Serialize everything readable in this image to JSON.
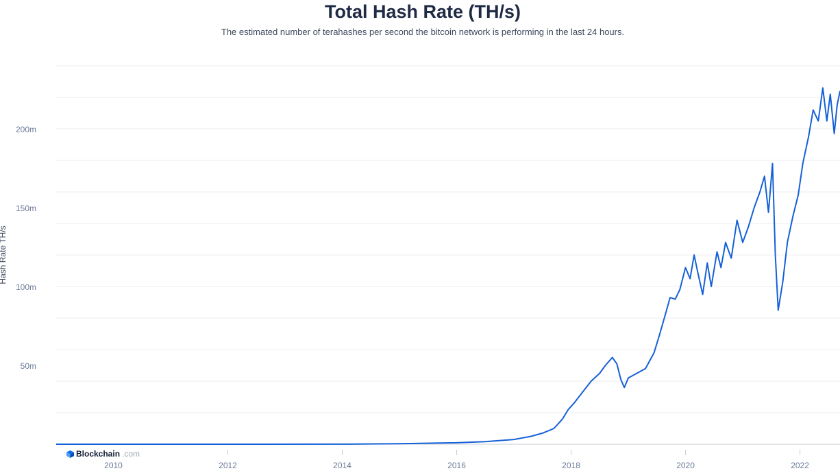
{
  "chart_data": {
    "type": "line",
    "title": "Total Hash Rate (TH/s)",
    "subtitle": "The estimated number of terahashes per second the bitcoin network is performing in the last 24 hours.",
    "ylabel": "Hash Rate TH/s",
    "xlabel": "",
    "xlim": [
      2009.0,
      2022.7
    ],
    "ylim": [
      0,
      240000000
    ],
    "x_ticks": [
      {
        "value": 2010,
        "label": "2010"
      },
      {
        "value": 2012,
        "label": "2012"
      },
      {
        "value": 2014,
        "label": "2014"
      },
      {
        "value": 2016,
        "label": "2016"
      },
      {
        "value": 2018,
        "label": "2018"
      },
      {
        "value": 2020,
        "label": "2020"
      },
      {
        "value": 2022,
        "label": "2022"
      }
    ],
    "y_ticks": [
      {
        "value": 50000000,
        "label": "50m"
      },
      {
        "value": 100000000,
        "label": "100m"
      },
      {
        "value": 150000000,
        "label": "150m"
      },
      {
        "value": 200000000,
        "label": "200m"
      }
    ],
    "y_gridlines": [
      20000000,
      40000000,
      60000000,
      80000000,
      100000000,
      120000000,
      140000000,
      160000000,
      180000000,
      200000000,
      220000000,
      240000000
    ],
    "grid": true,
    "legend": "none",
    "series": [
      {
        "color": "#1460d8",
        "points": [
          [
            2009.0,
            0
          ],
          [
            2012.0,
            0
          ],
          [
            2014.0,
            30000
          ],
          [
            2015.0,
            350000
          ],
          [
            2016.0,
            900000
          ],
          [
            2016.5,
            1600000
          ],
          [
            2017.0,
            3000000
          ],
          [
            2017.3,
            5000000
          ],
          [
            2017.5,
            7000000
          ],
          [
            2017.7,
            10000000
          ],
          [
            2017.85,
            16000000
          ],
          [
            2017.95,
            22000000
          ],
          [
            2018.05,
            26000000
          ],
          [
            2018.2,
            33000000
          ],
          [
            2018.35,
            40000000
          ],
          [
            2018.5,
            45000000
          ],
          [
            2018.6,
            50000000
          ],
          [
            2018.72,
            55000000
          ],
          [
            2018.8,
            51000000
          ],
          [
            2018.87,
            41000000
          ],
          [
            2018.93,
            36000000
          ],
          [
            2019.0,
            42000000
          ],
          [
            2019.15,
            45000000
          ],
          [
            2019.3,
            48000000
          ],
          [
            2019.45,
            58000000
          ],
          [
            2019.55,
            70000000
          ],
          [
            2019.63,
            80000000
          ],
          [
            2019.73,
            93000000
          ],
          [
            2019.82,
            92000000
          ],
          [
            2019.9,
            98000000
          ],
          [
            2020.0,
            112000000
          ],
          [
            2020.08,
            105000000
          ],
          [
            2020.15,
            120000000
          ],
          [
            2020.22,
            108000000
          ],
          [
            2020.3,
            95000000
          ],
          [
            2020.38,
            115000000
          ],
          [
            2020.45,
            100000000
          ],
          [
            2020.55,
            122000000
          ],
          [
            2020.62,
            112000000
          ],
          [
            2020.7,
            128000000
          ],
          [
            2020.8,
            118000000
          ],
          [
            2020.9,
            142000000
          ],
          [
            2021.0,
            128000000
          ],
          [
            2021.1,
            138000000
          ],
          [
            2021.2,
            150000000
          ],
          [
            2021.3,
            160000000
          ],
          [
            2021.38,
            170000000
          ],
          [
            2021.45,
            147000000
          ],
          [
            2021.52,
            178000000
          ],
          [
            2021.57,
            120000000
          ],
          [
            2021.62,
            85000000
          ],
          [
            2021.7,
            103000000
          ],
          [
            2021.78,
            128000000
          ],
          [
            2021.88,
            145000000
          ],
          [
            2021.97,
            158000000
          ],
          [
            2022.05,
            178000000
          ],
          [
            2022.15,
            195000000
          ],
          [
            2022.23,
            212000000
          ],
          [
            2022.32,
            205000000
          ],
          [
            2022.4,
            226000000
          ],
          [
            2022.47,
            205000000
          ],
          [
            2022.53,
            222000000
          ],
          [
            2022.6,
            197000000
          ],
          [
            2022.65,
            215000000
          ],
          [
            2022.7,
            224000000
          ]
        ]
      }
    ]
  },
  "brand": {
    "name": "Blockchain",
    "suffix": ".com",
    "icon": "blockchain-logo-icon"
  }
}
